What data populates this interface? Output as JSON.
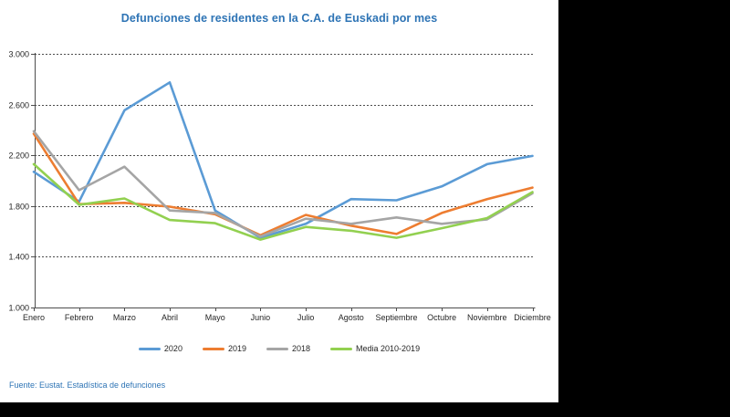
{
  "page": {
    "background_color": "#000000",
    "panel_color": "#ffffff",
    "accent_color": "#2E74B5"
  },
  "chart_data": {
    "type": "line",
    "title": "Defunciones de residentes en la C.A. de Euskadi por mes",
    "xlabel": "",
    "ylabel": "",
    "ylim": [
      1000,
      3000
    ],
    "grid": "horizontal dashed",
    "legend_position": "bottom",
    "categories": [
      "Enero",
      "Febrero",
      "Marzo",
      "Abril",
      "Mayo",
      "Junio",
      "Julio",
      "Agosto",
      "Septiembre",
      "Octubre",
      "Noviembre",
      "Diciembre"
    ],
    "y_ticks": [
      {
        "value": 3000,
        "label": "3.000"
      },
      {
        "value": 2600,
        "label": "2.600"
      },
      {
        "value": 2200,
        "label": "2.200"
      },
      {
        "value": 1800,
        "label": "1.800"
      },
      {
        "value": 1400,
        "label": "1.400"
      },
      {
        "value": 1000,
        "label": "1.000"
      }
    ],
    "series": [
      {
        "name": "2020",
        "color": "#5B9BD5",
        "values": [
          2070,
          1835,
          2555,
          2775,
          1765,
          1550,
          1660,
          1855,
          1845,
          1955,
          2130,
          2195
        ]
      },
      {
        "name": "2019",
        "color": "#ED7D31",
        "values": [
          2370,
          1815,
          1825,
          1795,
          1735,
          1570,
          1730,
          1645,
          1580,
          1745,
          1855,
          1945
        ]
      },
      {
        "name": "2018",
        "color": "#A5A5A5",
        "values": [
          2390,
          1925,
          2110,
          1765,
          1745,
          1560,
          1700,
          1660,
          1710,
          1660,
          1695,
          1900
        ]
      },
      {
        "name": "Media 2010-2019",
        "color": "#92D050",
        "values": [
          2130,
          1810,
          1860,
          1690,
          1665,
          1535,
          1635,
          1605,
          1550,
          1625,
          1705,
          1910
        ]
      }
    ]
  },
  "footer": {
    "source": "Fuente: Eustat. Estadística de defunciones"
  }
}
